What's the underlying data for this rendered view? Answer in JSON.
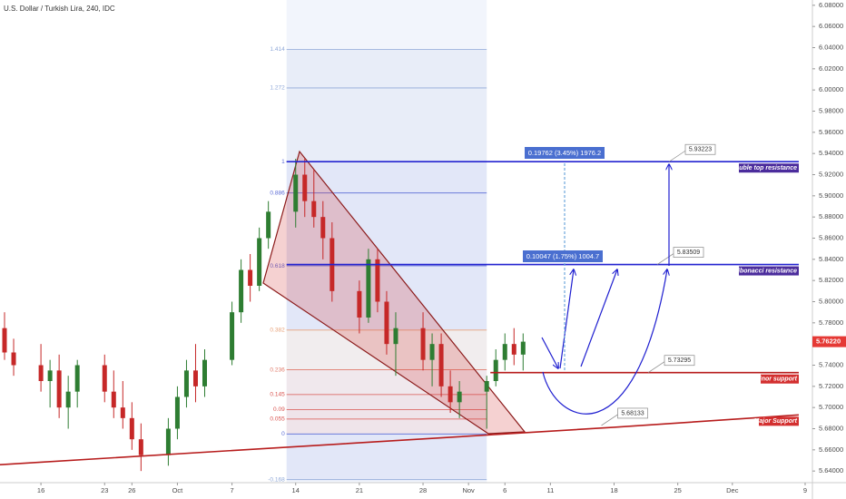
{
  "title": "U.S. Dollar / Turkish Lira, 240, IDC",
  "chart_data": {
    "type": "candlestick",
    "x": [
      -4,
      -3,
      0,
      1,
      2,
      3,
      4,
      7,
      8,
      9,
      10,
      11,
      14,
      15,
      16,
      17,
      18,
      21,
      22,
      23,
      24,
      25,
      28,
      29,
      30,
      31,
      32,
      35,
      36,
      37,
      38,
      39,
      42,
      43,
      44,
      45,
      46,
      49,
      50,
      51,
      52,
      53
    ],
    "open": [
      5.775,
      5.752,
      5.74,
      5.725,
      5.735,
      5.7,
      5.715,
      5.74,
      5.715,
      5.7,
      5.69,
      5.67,
      5.655,
      5.68,
      5.71,
      5.735,
      5.72,
      5.745,
      5.79,
      5.83,
      5.815,
      5.86,
      5.885,
      5.92,
      5.895,
      5.88,
      5.86,
      5.81,
      5.785,
      5.84,
      5.8,
      5.76,
      5.775,
      5.745,
      5.76,
      5.72,
      5.705,
      5.715,
      5.725,
      5.745,
      5.76,
      5.75
    ],
    "high": [
      5.79,
      5.765,
      5.76,
      5.745,
      5.75,
      5.73,
      5.745,
      5.75,
      5.735,
      5.725,
      5.705,
      5.685,
      5.69,
      5.72,
      5.745,
      5.76,
      5.755,
      5.8,
      5.84,
      5.845,
      5.87,
      5.895,
      5.935,
      5.935,
      5.925,
      5.895,
      5.875,
      5.82,
      5.85,
      5.85,
      5.81,
      5.79,
      5.79,
      5.77,
      5.77,
      5.735,
      5.725,
      5.73,
      5.755,
      5.77,
      5.775,
      5.77
    ],
    "low": [
      5.745,
      5.73,
      5.715,
      5.7,
      5.69,
      5.68,
      5.7,
      5.705,
      5.69,
      5.68,
      5.66,
      5.64,
      5.645,
      5.67,
      5.7,
      5.705,
      5.71,
      5.74,
      5.78,
      5.8,
      5.81,
      5.85,
      5.87,
      5.88,
      5.87,
      5.84,
      5.8,
      5.77,
      5.78,
      5.79,
      5.75,
      5.73,
      5.735,
      5.72,
      5.71,
      5.695,
      5.69,
      5.68,
      5.72,
      5.735,
      5.74,
      5.735
    ],
    "close": [
      5.752,
      5.74,
      5.725,
      5.735,
      5.7,
      5.715,
      5.74,
      5.715,
      5.7,
      5.69,
      5.67,
      5.655,
      5.68,
      5.71,
      5.735,
      5.72,
      5.745,
      5.79,
      5.83,
      5.815,
      5.86,
      5.885,
      5.92,
      5.895,
      5.88,
      5.86,
      5.81,
      5.785,
      5.84,
      5.8,
      5.76,
      5.775,
      5.745,
      5.76,
      5.72,
      5.705,
      5.715,
      5.725,
      5.745,
      5.76,
      5.75,
      5.7622
    ],
    "up_color": "#2e7d32",
    "down_color": "#c62828",
    "xlim": [
      -4.5,
      84.8
    ],
    "xticks": [
      {
        "value": 0,
        "label": "16"
      },
      {
        "value": 7,
        "label": "23"
      },
      {
        "value": 10,
        "label": "26"
      },
      {
        "value": 15,
        "label": "Oct"
      },
      {
        "value": 21,
        "label": "7"
      },
      {
        "value": 28,
        "label": "14"
      },
      {
        "value": 35,
        "label": "21"
      },
      {
        "value": 42,
        "label": "28"
      },
      {
        "value": 47,
        "label": "Nov"
      },
      {
        "value": 51,
        "label": "6"
      },
      {
        "value": 56,
        "label": "11"
      },
      {
        "value": 63,
        "label": "18"
      },
      {
        "value": 70,
        "label": "25"
      },
      {
        "value": 76,
        "label": "Dec"
      },
      {
        "value": 84,
        "label": "9"
      }
    ],
    "ylim": [
      5.629,
      6.085
    ],
    "yticks": [
      {
        "value": 5.64,
        "label": "5.64000"
      },
      {
        "value": 5.66,
        "label": "5.66000"
      },
      {
        "value": 5.68,
        "label": "5.68000"
      },
      {
        "value": 5.7,
        "label": "5.70000"
      },
      {
        "value": 5.72,
        "label": "5.72000"
      },
      {
        "value": 5.74,
        "label": "5.74000"
      },
      {
        "value": 5.76,
        "label": "5.76000"
      },
      {
        "value": 5.78,
        "label": "5.78000"
      },
      {
        "value": 5.8,
        "label": "5.80000"
      },
      {
        "value": 5.82,
        "label": "5.82000"
      },
      {
        "value": 5.84,
        "label": "5.84000"
      },
      {
        "value": 5.86,
        "label": "5.86000"
      },
      {
        "value": 5.88,
        "label": "5.88000"
      },
      {
        "value": 5.9,
        "label": "5.90000"
      },
      {
        "value": 5.92,
        "label": "5.92000"
      },
      {
        "value": 5.94,
        "label": "5.94000"
      },
      {
        "value": 5.96,
        "label": "5.96000"
      },
      {
        "value": 5.98,
        "label": "5.98000"
      },
      {
        "value": 6.0,
        "label": "6.00000"
      },
      {
        "value": 6.02,
        "label": "6.02000"
      },
      {
        "value": 6.04,
        "label": "6.04000"
      },
      {
        "value": 6.06,
        "label": "6.06000"
      },
      {
        "value": 6.08,
        "label": "6.08000"
      }
    ],
    "last_price": {
      "value": 5.7622,
      "label": "5.76220",
      "color": "#e53935"
    },
    "fibonacci": {
      "x": [
        27,
        49
      ],
      "range": [
        5.675,
        5.932
      ],
      "levels": [
        1.414,
        1.272,
        1,
        0.886,
        0.618,
        0.382,
        0.236,
        0.145,
        0.09,
        0.055,
        0,
        -0.168
      ],
      "colors": [
        "#8fa8d8",
        "#8fa8d8",
        "#5b6bd6",
        "#5b6bd6",
        "#5b6bd6",
        "#e8a27a",
        "#e07a6a",
        "#d9534f",
        "#d9534f",
        "#d9534f",
        "#5b6bd6",
        "#8fa8d8"
      ]
    },
    "levels": [
      {
        "name": "Double top resistance",
        "value": 5.93223,
        "x": [
          27,
          83.3
        ],
        "color": "#2323d0",
        "tag_color": "#4b2c9c"
      },
      {
        "name": "Fibonacci resistance",
        "value": 5.83509,
        "x": [
          27,
          83.3
        ],
        "color": "#2323d0",
        "tag_color": "#4b2c9c"
      },
      {
        "name": "Minor support",
        "value": 5.73295,
        "x": [
          49.4,
          83.3
        ],
        "color": "#b71c1c",
        "tag_color": "#d32f2f"
      }
    ],
    "trendline": {
      "name": "Major Support",
      "x": [
        -4.5,
        63,
        83.3
      ],
      "values": [
        5.646,
        5.68133,
        5.693
      ],
      "color": "#b71c1c",
      "tag_color": "#d32f2f"
    },
    "measurements": [
      "0.19762 (3.45%) 1976.2",
      "0.10047 (1.75%) 1004.7"
    ]
  }
}
